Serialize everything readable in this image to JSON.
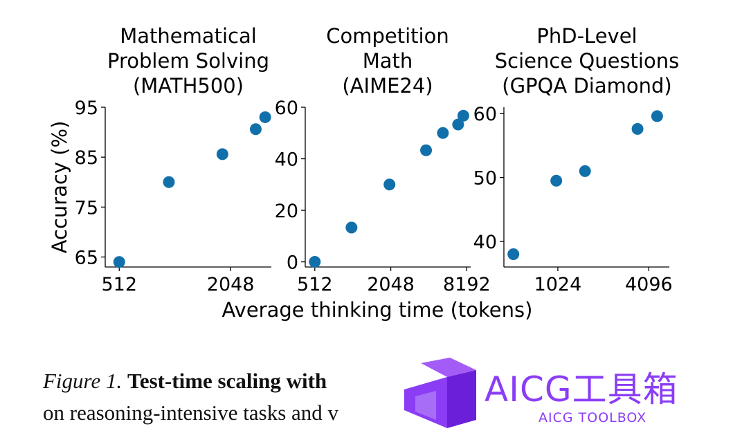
{
  "chart_data": [
    {
      "type": "scatter",
      "title_lines": [
        "Mathematical",
        "Problem Solving",
        "(MATH500)"
      ],
      "ylabel": "Accuracy (%)",
      "x_scale": "log2",
      "xlim": [
        430,
        3400
      ],
      "ylim": [
        63,
        95
      ],
      "xticks": [
        512,
        2048
      ],
      "xtick_labels": [
        "512",
        "2048"
      ],
      "yticks": [
        65,
        75,
        85,
        95
      ],
      "ytick_labels": [
        "65",
        "75",
        "85",
        "95"
      ],
      "series": [
        {
          "color": "#1170aa",
          "points": [
            {
              "x": 512,
              "y": 64.0
            },
            {
              "x": 950,
              "y": 80.0
            },
            {
              "x": 1850,
              "y": 85.6
            },
            {
              "x": 2800,
              "y": 90.6
            },
            {
              "x": 3150,
              "y": 93.0
            }
          ]
        }
      ]
    },
    {
      "type": "scatter",
      "title_lines": [
        "Competition",
        "Math",
        "(AIME24)"
      ],
      "ylabel": "",
      "x_scale": "log2",
      "xlim": [
        430,
        8800
      ],
      "ylim": [
        -2,
        60
      ],
      "xticks": [
        512,
        2048,
        8192
      ],
      "xtick_labels": [
        "512",
        "2048",
        "8192"
      ],
      "yticks": [
        0,
        20,
        40,
        60
      ],
      "ytick_labels": [
        "0",
        "20",
        "40",
        "60"
      ],
      "series": [
        {
          "color": "#1170aa",
          "points": [
            {
              "x": 512,
              "y": 0.0
            },
            {
              "x": 1000,
              "y": 13.3
            },
            {
              "x": 2000,
              "y": 30.0
            },
            {
              "x": 3900,
              "y": 43.3
            },
            {
              "x": 5300,
              "y": 50.0
            },
            {
              "x": 7000,
              "y": 53.3
            },
            {
              "x": 7700,
              "y": 56.7
            }
          ]
        }
      ]
    },
    {
      "type": "scatter",
      "title_lines": [
        "PhD-Level",
        "Science Questions",
        "(GPQA Diamond)"
      ],
      "ylabel": "",
      "x_scale": "log2",
      "xlim": [
        450,
        5600
      ],
      "ylim": [
        36,
        61
      ],
      "xticks": [
        1024,
        4096
      ],
      "xtick_labels": [
        "1024",
        "4096"
      ],
      "yticks": [
        40,
        50,
        60
      ],
      "ytick_labels": [
        "40",
        "50",
        "60"
      ],
      "series": [
        {
          "color": "#1170aa",
          "points": [
            {
              "x": 520,
              "y": 38.0
            },
            {
              "x": 1000,
              "y": 49.5
            },
            {
              "x": 1550,
              "y": 51.0
            },
            {
              "x": 3450,
              "y": 57.6
            },
            {
              "x": 4650,
              "y": 59.6
            }
          ]
        }
      ]
    }
  ],
  "shared_xlabel": "Average thinking time (tokens)",
  "caption": {
    "label": "Figure 1.",
    "bold": "Test-time scaling with",
    "line2": "on reasoning-intensive tasks and v"
  },
  "watermark": {
    "text": "AICG工具箱",
    "subtext": "AICG TOOLBOX",
    "color": "#8b3df5"
  }
}
